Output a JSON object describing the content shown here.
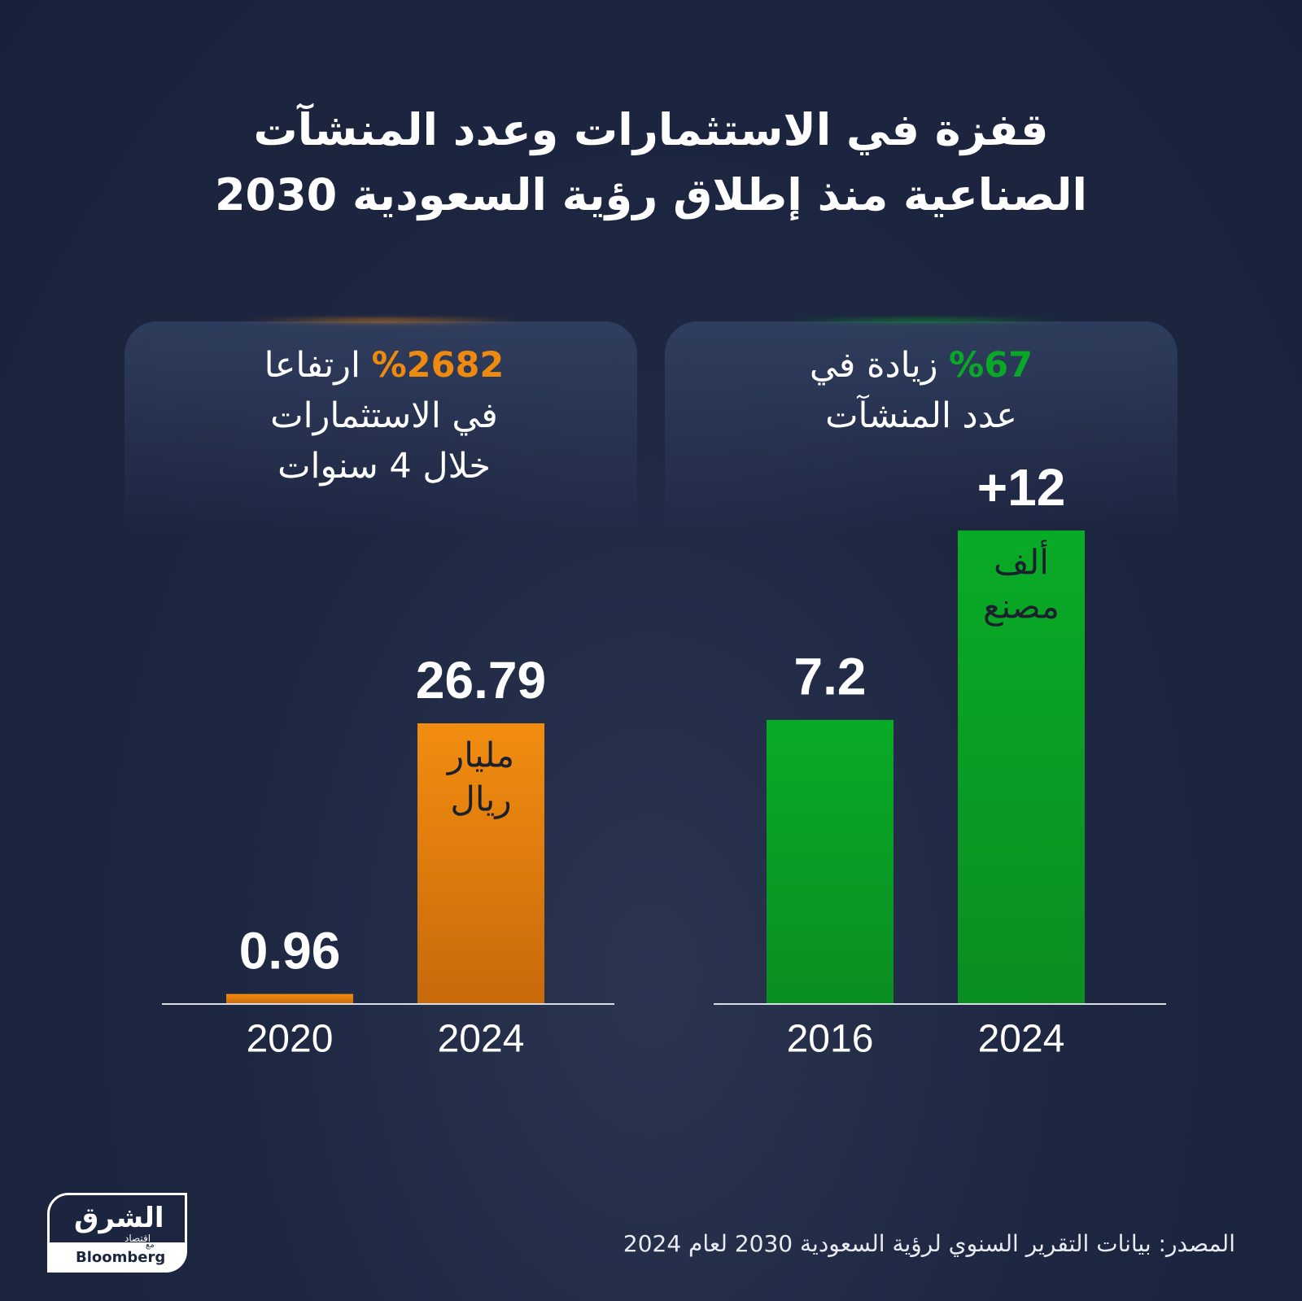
{
  "title": [
    "قفزة في الاستثمارات وعدد المنشآت",
    "الصناعية منذ إطلاق رؤية السعودية 2030"
  ],
  "chart_data": [
    {
      "type": "bar",
      "color": "#ef8a10",
      "header": {
        "highlight": "%2682",
        "text": "ارتفاعا",
        "lines": [
          "في الاستثمارات",
          "خلال 4 سنوات"
        ]
      },
      "categories": [
        "2020",
        "2024"
      ],
      "values": [
        0.96,
        26.79
      ],
      "unit_label": [
        "مليار",
        "ريال"
      ]
    },
    {
      "type": "bar",
      "color": "#09a826",
      "header": {
        "highlight": "%67",
        "text": "زيادة في",
        "lines": [
          "عدد المنشآت"
        ]
      },
      "categories": [
        "2016",
        "2024"
      ],
      "values": [
        7.2,
        12
      ],
      "value_labels": [
        "7.2",
        "+12"
      ],
      "unit_label": [
        "ألف",
        "مصنع"
      ]
    }
  ],
  "source": "المصدر: بيانات التقرير السنوي لرؤية السعودية 2030 لعام 2024",
  "logo": {
    "name": "الشرق",
    "sub": "اقتصاد",
    "with": "مع",
    "partner": "Bloomberg"
  }
}
